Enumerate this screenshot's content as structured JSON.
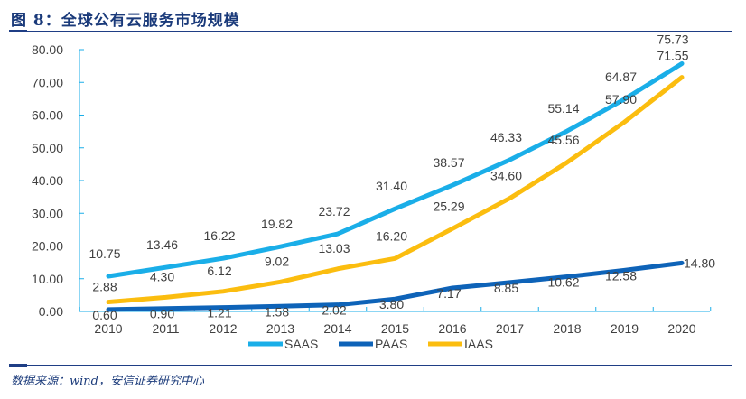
{
  "title": "图 8：全球公有云服务市场规模",
  "source": "数据来源：wind，安信证券研究中心",
  "chart_data": {
    "type": "line",
    "title": "全球公有云服务市场规模",
    "xlabel": "",
    "ylabel": "",
    "x": [
      "2010",
      "2011",
      "2012",
      "2013",
      "2014",
      "2015",
      "2016",
      "2017",
      "2018",
      "2019",
      "2020"
    ],
    "ylim": [
      0,
      80
    ],
    "yticks": [
      "0.00",
      "10.00",
      "20.00",
      "30.00",
      "40.00",
      "50.00",
      "60.00",
      "70.00",
      "80.00"
    ],
    "grid": false,
    "legend_position": "bottom",
    "series": [
      {
        "name": "SAAS",
        "color": "#1aaee8",
        "values": [
          10.75,
          13.46,
          16.22,
          19.82,
          23.72,
          31.4,
          38.57,
          46.33,
          55.14,
          64.87,
          75.73
        ],
        "labels": [
          "10.75",
          "13.46",
          "16.22",
          "19.82",
          "23.72",
          "31.40",
          "38.57",
          "46.33",
          "55.14",
          "64.87",
          "75.73"
        ]
      },
      {
        "name": "PAAS",
        "color": "#0e63b8",
        "values": [
          0.6,
          0.9,
          1.21,
          1.58,
          2.02,
          3.8,
          7.17,
          8.85,
          10.62,
          12.58,
          14.8
        ],
        "labels": [
          "0.60",
          "0.90",
          "1.21",
          "1.58",
          "2.02",
          "3.80",
          "7.17",
          "8.85",
          "10.62",
          "12.58",
          "14.80"
        ]
      },
      {
        "name": "IAAS",
        "color": "#fbbd0f",
        "values": [
          2.88,
          4.3,
          6.12,
          9.02,
          13.03,
          16.2,
          25.29,
          34.6,
          45.56,
          57.9,
          71.55
        ],
        "labels": [
          "2.88",
          "4.30",
          "6.12",
          "9.02",
          "13.03",
          "16.20",
          "25.29",
          "34.60",
          "45.56",
          "57.90",
          "71.55"
        ]
      }
    ],
    "axis_color": "#1aaee8"
  }
}
